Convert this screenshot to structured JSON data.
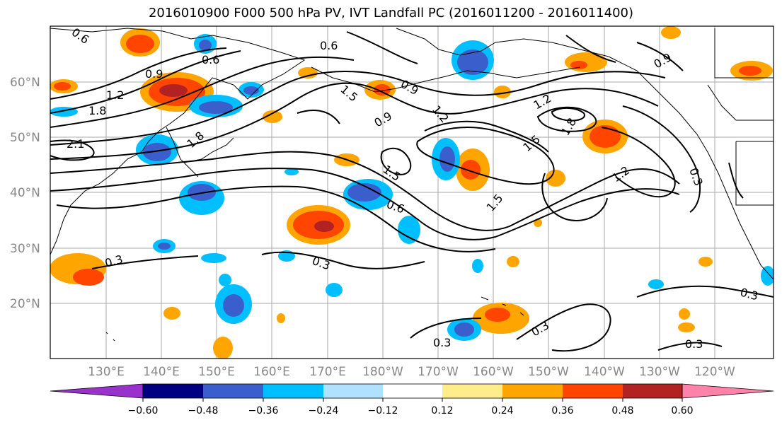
{
  "title": "2016010900 F000 500 hPa PV, IVT Landfall PC (2016011200 - 2016011400)",
  "lat_labels": [
    "60°N",
    "50°N",
    "40°N",
    "30°N",
    "20°N"
  ],
  "lon_labels": [
    "130°E",
    "140°E",
    "150°E",
    "160°E",
    "170°E",
    "180°W",
    "170°W",
    "160°W",
    "150°W",
    "140°W",
    "130°W",
    "120°W"
  ],
  "colorbar": {
    "ticks": [
      "−0.60",
      "−0.48",
      "−0.36",
      "−0.24",
      "−0.12",
      "0.12",
      "0.24",
      "0.36",
      "0.48",
      "0.60"
    ],
    "colors": [
      "#9932cc",
      "#000080",
      "#3a5fcd",
      "#00bfff",
      "#b0e2ff",
      "#ffffff",
      "#ffec8b",
      "#ffa500",
      "#ff4500",
      "#b22222",
      "#ff82ab"
    ]
  },
  "contour_labels": [
    "0.6",
    "0.6",
    "0.6",
    "0.6",
    "0.9",
    "0.9",
    "0.9",
    "0.9",
    "1.2",
    "1.2",
    "1.2",
    "1.2",
    "1.5",
    "1.5",
    "1.5",
    "1.5",
    "1.8",
    "1.8",
    "1.8",
    "2.1",
    "0.3",
    "0.3",
    "0.3",
    "0.3",
    "0.3",
    "0.3",
    "0.3"
  ]
}
